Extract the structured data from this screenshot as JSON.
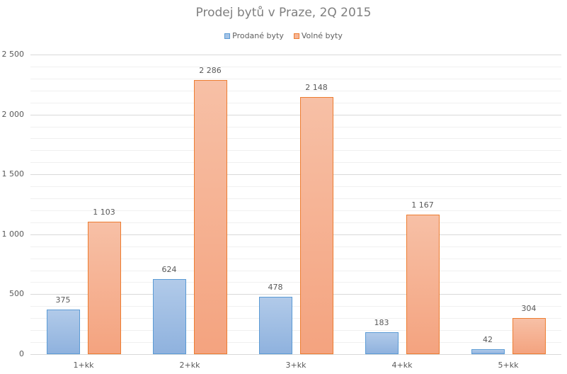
{
  "chart_data": {
    "type": "bar",
    "title": "Prodej bytů v Praze, 2Q 2015",
    "xlabel": "",
    "ylabel": "",
    "categories": [
      "1+kk",
      "2+kk",
      "3+kk",
      "4+kk",
      "5+kk"
    ],
    "series": [
      {
        "name": "Prodané byty",
        "color": "#5b9bd5",
        "values": [
          375,
          624,
          478,
          183,
          42
        ],
        "labels": [
          "375",
          "624",
          "478",
          "183",
          "42"
        ]
      },
      {
        "name": "Volné byty",
        "color": "#ed7d31",
        "values": [
          1103,
          2286,
          2148,
          1167,
          304
        ],
        "labels": [
          "1 103",
          "2 286",
          "2 148",
          "1 167",
          "304"
        ]
      }
    ],
    "ylim": [
      0,
      2500
    ],
    "yticks": [
      "0",
      "500",
      "1 000",
      "1 500",
      "2 000",
      "2 500"
    ],
    "ytick_values": [
      0,
      500,
      1000,
      1500,
      2000,
      2500
    ],
    "minor_grid_step": 100,
    "grid": true,
    "legend_position": "top"
  }
}
